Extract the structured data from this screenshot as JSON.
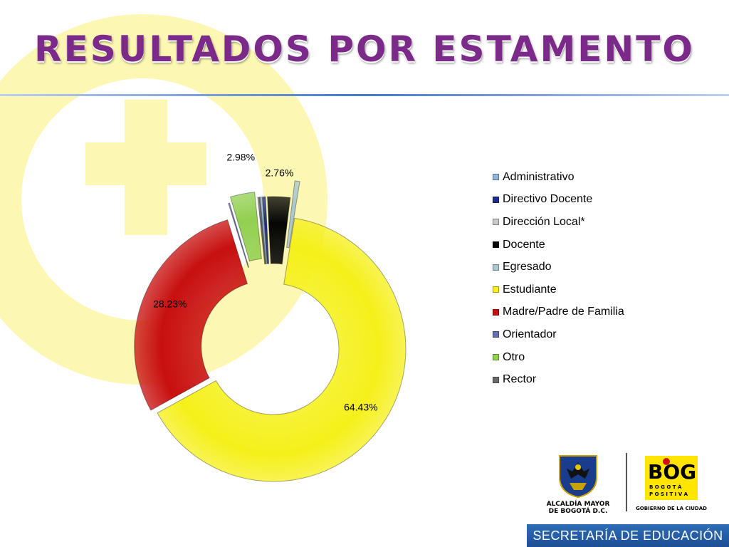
{
  "slide": {
    "title": "RESULTADOS POR ESTAMENTO",
    "footer": "SECRETARÍA DE EDUCACIÓN",
    "logo_left_line1": "ALCALDÍA MAYOR",
    "logo_left_line2": "DE BOGOTÁ D.C.",
    "logo_right_text": "BOG",
    "logo_right_sub1": "B O G O T Á",
    "logo_right_sub2": "P O S I T I V A",
    "logo_right_caption": "GOBIERNO DE LA CIUDAD",
    "colors": {
      "title": "#7b2a8a",
      "watermark": "#fcf6a6",
      "footer_bar": "#1c4f95",
      "logo_yellow": "#ffe500"
    }
  },
  "chart_data": {
    "type": "pie",
    "variant": "exploded doughnut",
    "categories": [
      "Administrativo",
      "Directivo Docente",
      "Dirección Local*",
      "Docente",
      "Egresado",
      "Estudiante",
      "Madre/Padre de Familia",
      "Orientador",
      "Otro",
      "Rector"
    ],
    "values": [
      0.25,
      0.35,
      0.05,
      2.76,
      0.6,
      64.43,
      28.23,
      0.15,
      2.98,
      0.2
    ],
    "data_labels": {
      "Docente": "2.76%",
      "Estudiante": "64.43%",
      "Madre/Padre de Familia": "28.23%",
      "Otro": "2.98%"
    },
    "colors": [
      "#8fb3d9",
      "#1f2d8a",
      "#c8c8c8",
      "#050505",
      "#a9c7cf",
      "#f5f01a",
      "#c80f0f",
      "#6470b0",
      "#92d050",
      "#6a6a6a"
    ],
    "legend_position": "right"
  }
}
